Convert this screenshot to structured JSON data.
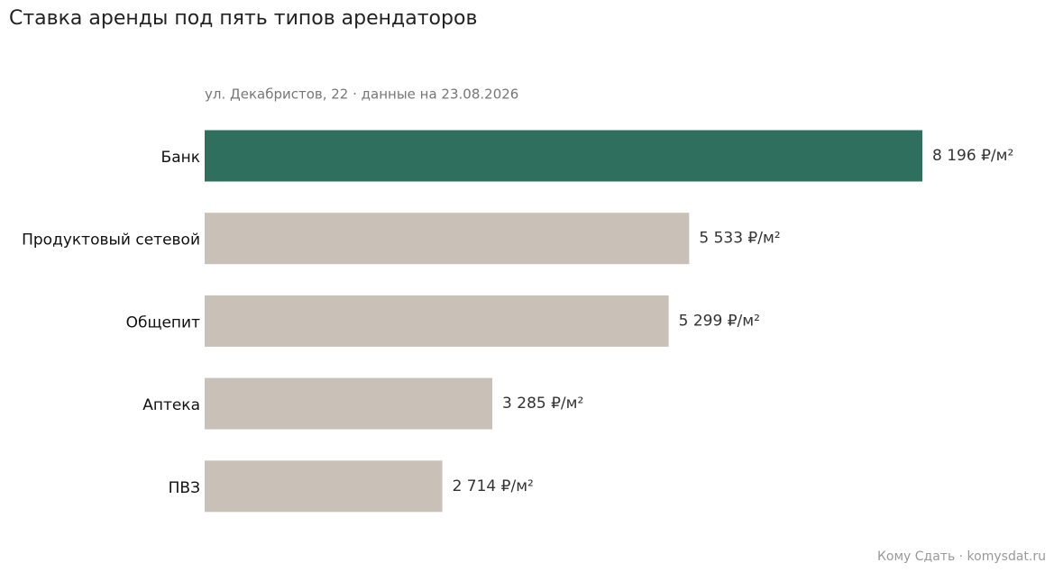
{
  "chart_data": {
    "type": "barh",
    "title": "Ставка аренды под пять типов арендаторов",
    "subtitle": "ул. Декабристов, 22 · данные на 23.08.2026",
    "source": "Кому Сдать · komysdat.ru",
    "categories": [
      "Банк",
      "Продуктовый сетевой",
      "Общепит",
      "Аптека",
      "ПВЗ"
    ],
    "values": [
      8196,
      5533,
      5299,
      3285,
      2714
    ],
    "value_labels": [
      "8 196 ₽/м²",
      "5 533 ₽/м²",
      "5 299 ₽/м²",
      "3 285 ₽/м²",
      "2 714 ₽/м²"
    ],
    "colors": [
      "#2e6f5e",
      "#c9c1b7",
      "#c9c1b7",
      "#c9c1b7",
      "#c9c1b7"
    ]
  }
}
